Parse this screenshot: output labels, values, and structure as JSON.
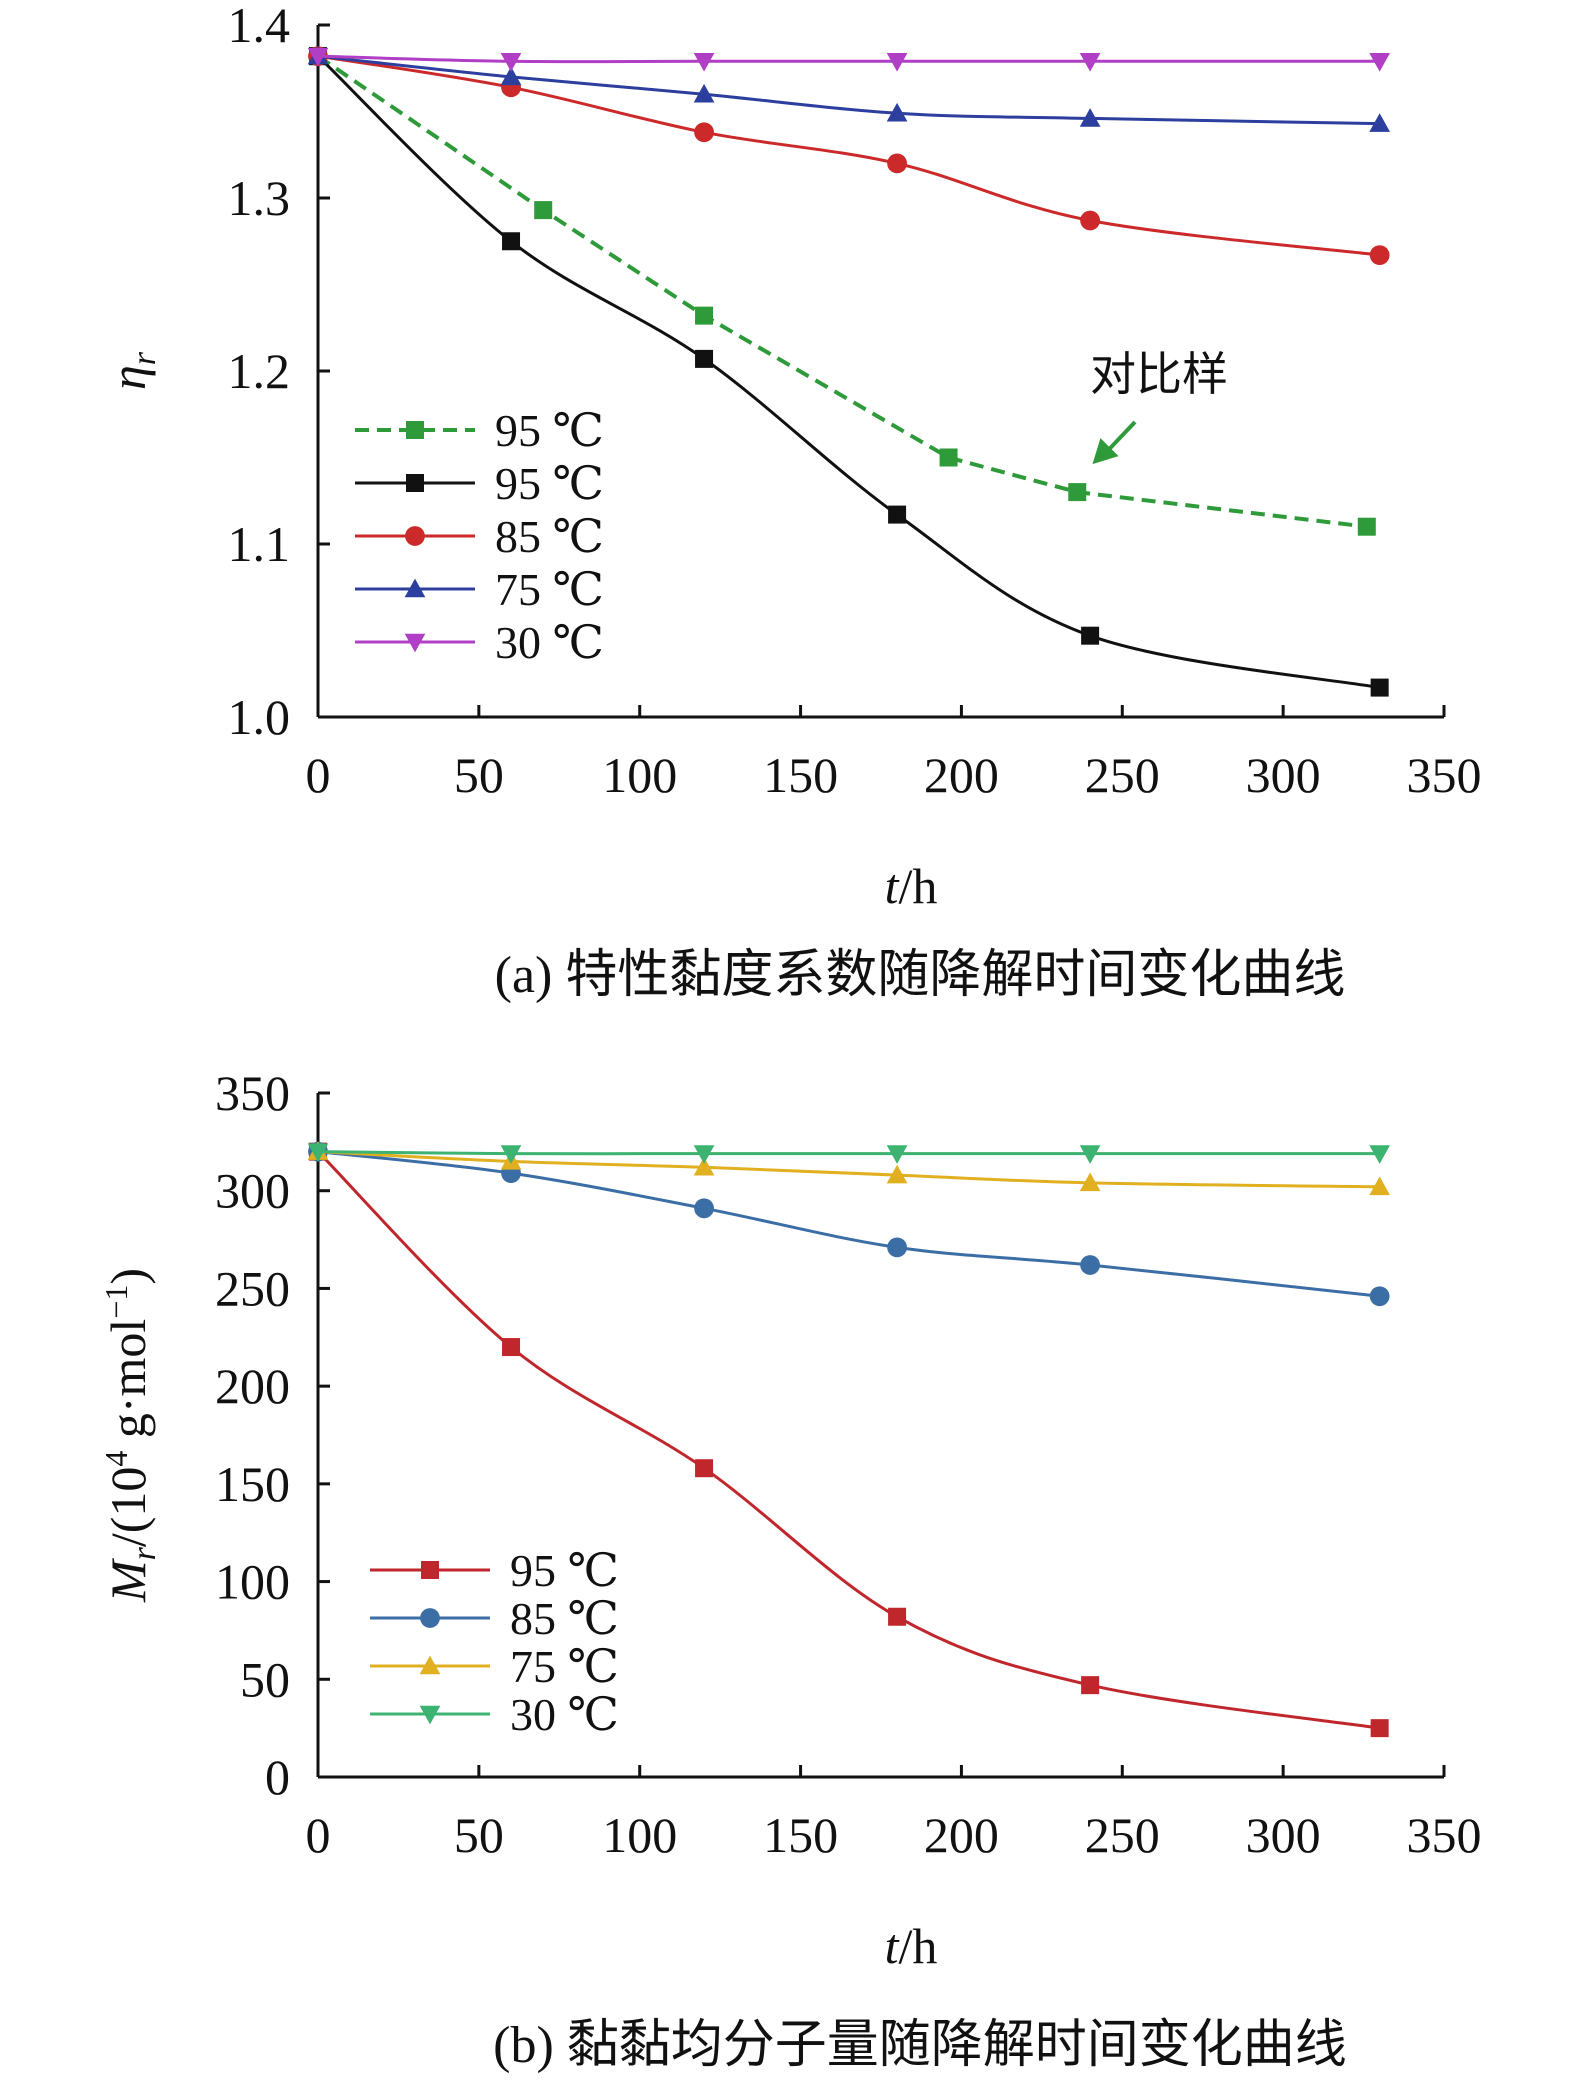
{
  "chart_data": [
    {
      "type": "line",
      "panel": "a",
      "caption": "(a) 特性黏度系数随降解时间变化曲线",
      "ylabel_main": "η",
      "ylabel_sub": "r",
      "xlabel_main": "t",
      "xlabel_rest": "/h",
      "xlim": [
        0,
        350
      ],
      "ylim": [
        1.0,
        1.4
      ],
      "xticks": [
        "0",
        "50",
        "100",
        "150",
        "200",
        "250",
        "300",
        "350"
      ],
      "xtick_values": [
        0,
        50,
        100,
        150,
        200,
        250,
        300,
        350
      ],
      "yticks": [
        "1.0",
        "1.1",
        "1.2",
        "1.3",
        "1.4"
      ],
      "ytick_values": [
        1.0,
        1.1,
        1.2,
        1.3,
        1.4
      ],
      "annotation": "对比样",
      "annotation_points_to": [
        237,
        1.13
      ],
      "legend_position": "lower-left",
      "series": [
        {
          "name": "95 ℃",
          "color": "#2e9a3a",
          "marker": "square",
          "dashed": true,
          "x": [
            0,
            70,
            120,
            196,
            236,
            326
          ],
          "y": [
            1.382,
            1.293,
            1.232,
            1.15,
            1.13,
            1.11
          ]
        },
        {
          "name": "95 ℃",
          "color": "#111111",
          "marker": "square",
          "dashed": false,
          "x": [
            0,
            60,
            120,
            180,
            240,
            330
          ],
          "y": [
            1.382,
            1.275,
            1.207,
            1.117,
            1.047,
            1.017
          ]
        },
        {
          "name": "85 ℃",
          "color": "#cc2a2a",
          "marker": "circle",
          "dashed": false,
          "x": [
            0,
            60,
            120,
            180,
            240,
            330
          ],
          "y": [
            1.382,
            1.364,
            1.338,
            1.32,
            1.287,
            1.267
          ]
        },
        {
          "name": "75 ℃",
          "color": "#2c3e9e",
          "marker": "triangle-up",
          "dashed": false,
          "x": [
            0,
            60,
            120,
            180,
            240,
            330
          ],
          "y": [
            1.382,
            1.37,
            1.36,
            1.349,
            1.346,
            1.343
          ]
        },
        {
          "name": "30 ℃",
          "color": "#b03fc6",
          "marker": "triangle-down",
          "dashed": false,
          "x": [
            0,
            60,
            120,
            180,
            240,
            330
          ],
          "y": [
            1.382,
            1.379,
            1.379,
            1.379,
            1.379,
            1.379
          ]
        }
      ]
    },
    {
      "type": "line",
      "panel": "b",
      "caption": "(b) 黏黏均分子量随降解时间变化曲线",
      "ylabel_main": "M",
      "ylabel_sub": "r",
      "ylabel_rest": "/(10",
      "ylabel_sup": "4",
      "ylabel_rest2": " g·mol",
      "ylabel_sup2": "−1",
      "ylabel_end": ")",
      "xlabel_main": "t",
      "xlabel_rest": "/h",
      "xlim": [
        0,
        350
      ],
      "ylim": [
        0,
        350
      ],
      "xticks": [
        "0",
        "50",
        "100",
        "150",
        "200",
        "250",
        "300",
        "350"
      ],
      "xtick_values": [
        0,
        50,
        100,
        150,
        200,
        250,
        300,
        350
      ],
      "yticks": [
        "0",
        "50",
        "100",
        "150",
        "200",
        "250",
        "300",
        "350"
      ],
      "ytick_values": [
        0,
        50,
        100,
        150,
        200,
        250,
        300,
        350
      ],
      "legend_position": "lower-left",
      "series": [
        {
          "name": "95 ℃",
          "color": "#c0272d",
          "marker": "square",
          "dashed": false,
          "x": [
            0,
            60,
            120,
            180,
            240,
            330
          ],
          "y": [
            320,
            220,
            158,
            82,
            47,
            25
          ]
        },
        {
          "name": "85 ℃",
          "color": "#3b6ea5",
          "marker": "circle",
          "dashed": false,
          "x": [
            0,
            60,
            120,
            180,
            240,
            330
          ],
          "y": [
            320,
            309,
            291,
            271,
            262,
            246
          ]
        },
        {
          "name": "75 ℃",
          "color": "#e0b020",
          "marker": "triangle-up",
          "dashed": false,
          "x": [
            0,
            60,
            120,
            180,
            240,
            330
          ],
          "y": [
            320,
            315,
            312,
            308,
            304,
            302
          ]
        },
        {
          "name": "30 ℃",
          "color": "#3cb371",
          "marker": "triangle-down",
          "dashed": false,
          "x": [
            0,
            60,
            120,
            180,
            240,
            330
          ],
          "y": [
            320,
            319,
            319,
            319,
            319,
            319
          ]
        }
      ]
    }
  ]
}
